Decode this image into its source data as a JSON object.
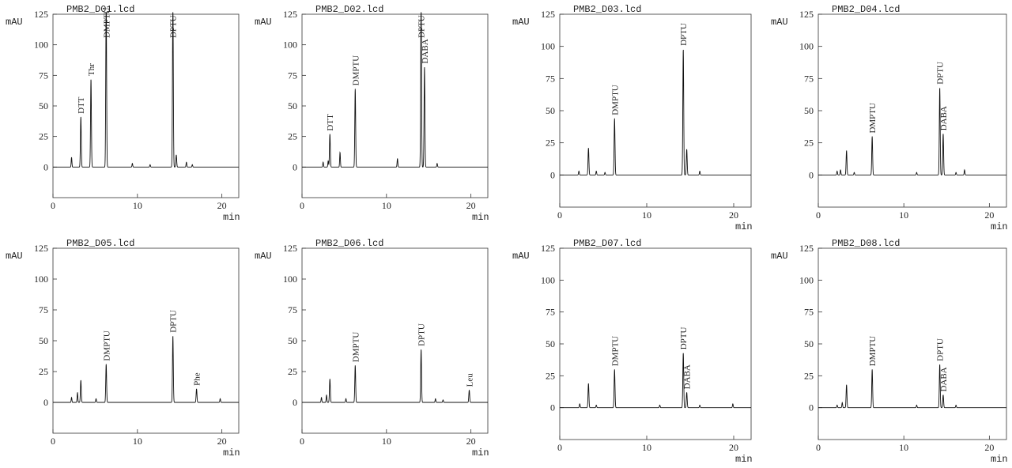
{
  "figure": {
    "y_unit": "mAU",
    "x_unit": "min"
  },
  "chart_data": [
    {
      "type": "line",
      "title": "PMB2_D01.lcd",
      "xlabel": "min",
      "ylabel": "mAU",
      "xlim": [
        0,
        22
      ],
      "ylim": [
        -25,
        125
      ],
      "x_ticks": [
        0,
        10,
        20
      ],
      "y_ticks": [
        0,
        25,
        50,
        75,
        100,
        125
      ],
      "grid": false,
      "baseline_bumps": [
        [
          2.2,
          8
        ],
        [
          9.4,
          3
        ],
        [
          11.5,
          2
        ],
        [
          15.8,
          4
        ],
        [
          16.5,
          2
        ]
      ],
      "peaks": [
        {
          "x": 3.3,
          "height": 41,
          "label": "DTT"
        },
        {
          "x": 4.5,
          "height": 72,
          "label": "Thr"
        },
        {
          "x": 6.3,
          "height": 135,
          "label": "DMPTU"
        },
        {
          "x": 14.2,
          "height": 135,
          "label": "DPTU"
        },
        {
          "x": 14.6,
          "height": 10,
          "label": ""
        }
      ]
    },
    {
      "type": "line",
      "title": "PMB2_D02.lcd",
      "xlabel": "min",
      "ylabel": "mAU",
      "xlim": [
        0,
        22
      ],
      "ylim": [
        -25,
        125
      ],
      "x_ticks": [
        0,
        10,
        20
      ],
      "y_ticks": [
        0,
        25,
        50,
        75,
        100,
        125
      ],
      "grid": false,
      "baseline_bumps": [
        [
          2.5,
          4
        ],
        [
          3.1,
          5
        ],
        [
          4.5,
          12
        ],
        [
          11.3,
          7
        ],
        [
          16.0,
          3
        ]
      ],
      "peaks": [
        {
          "x": 3.3,
          "height": 27,
          "label": "DTT"
        },
        {
          "x": 6.3,
          "height": 64,
          "label": "DMPTU"
        },
        {
          "x": 14.1,
          "height": 135,
          "label": "DPTU"
        },
        {
          "x": 14.5,
          "height": 82,
          "label": "DABA"
        }
      ]
    },
    {
      "type": "line",
      "title": "PMB2_D03.lcd",
      "xlabel": "min",
      "ylabel": "mAU",
      "xlim": [
        0,
        22
      ],
      "ylim": [
        -25,
        125
      ],
      "x_ticks": [
        0,
        10,
        20
      ],
      "y_ticks": [
        0,
        25,
        50,
        75,
        100,
        125
      ],
      "grid": false,
      "baseline_bumps": [
        [
          2.2,
          3
        ],
        [
          4.2,
          3
        ],
        [
          5.2,
          2
        ],
        [
          16.1,
          3
        ]
      ],
      "peaks": [
        {
          "x": 3.3,
          "height": 21,
          "label": ""
        },
        {
          "x": 6.3,
          "height": 44,
          "label": "DMPTU"
        },
        {
          "x": 14.2,
          "height": 98,
          "label": "DPTU"
        },
        {
          "x": 14.6,
          "height": 20,
          "label": ""
        }
      ]
    },
    {
      "type": "line",
      "title": "PMB2_D04.lcd",
      "xlabel": "min",
      "ylabel": "mAU",
      "xlim": [
        0,
        22
      ],
      "ylim": [
        -25,
        125
      ],
      "x_ticks": [
        0,
        10,
        20
      ],
      "y_ticks": [
        0,
        25,
        50,
        75,
        100,
        125
      ],
      "grid": false,
      "baseline_bumps": [
        [
          2.2,
          3
        ],
        [
          2.6,
          4
        ],
        [
          4.2,
          2
        ],
        [
          11.5,
          2
        ],
        [
          16.1,
          2
        ],
        [
          17.1,
          4
        ]
      ],
      "peaks": [
        {
          "x": 3.3,
          "height": 19,
          "label": ""
        },
        {
          "x": 6.3,
          "height": 30,
          "label": "DMPTU"
        },
        {
          "x": 14.2,
          "height": 68,
          "label": "DPTU"
        },
        {
          "x": 14.6,
          "height": 32,
          "label": "DABA"
        }
      ]
    },
    {
      "type": "line",
      "title": "PMB2_D05.lcd",
      "xlabel": "min",
      "ylabel": "mAU",
      "xlim": [
        0,
        22
      ],
      "ylim": [
        -25,
        125
      ],
      "x_ticks": [
        0,
        10,
        20
      ],
      "y_ticks": [
        0,
        25,
        50,
        75,
        100,
        125
      ],
      "grid": false,
      "baseline_bumps": [
        [
          2.2,
          4
        ],
        [
          2.9,
          8
        ],
        [
          5.1,
          3
        ],
        [
          19.8,
          3
        ]
      ],
      "peaks": [
        {
          "x": 3.3,
          "height": 18,
          "label": ""
        },
        {
          "x": 6.3,
          "height": 31,
          "label": "DMPTU"
        },
        {
          "x": 14.2,
          "height": 54,
          "label": "DPTU"
        },
        {
          "x": 17.0,
          "height": 11,
          "label": "Phe"
        }
      ]
    },
    {
      "type": "line",
      "title": "PMB2_D06.lcd",
      "xlabel": "min",
      "ylabel": "mAU",
      "xlim": [
        0,
        22
      ],
      "ylim": [
        -25,
        125
      ],
      "x_ticks": [
        0,
        10,
        20
      ],
      "y_ticks": [
        0,
        25,
        50,
        75,
        100,
        125
      ],
      "grid": false,
      "baseline_bumps": [
        [
          2.3,
          4
        ],
        [
          2.9,
          6
        ],
        [
          5.2,
          3
        ],
        [
          15.8,
          3
        ],
        [
          16.7,
          2
        ]
      ],
      "peaks": [
        {
          "x": 3.3,
          "height": 19,
          "label": ""
        },
        {
          "x": 6.3,
          "height": 30,
          "label": "DMPTU"
        },
        {
          "x": 14.1,
          "height": 43,
          "label": "DPTU"
        },
        {
          "x": 19.8,
          "height": 10,
          "label": "Leu"
        }
      ]
    },
    {
      "type": "line",
      "title": "PMB2_D07.lcd",
      "xlabel": "min",
      "ylabel": "mAU",
      "xlim": [
        0,
        22
      ],
      "ylim": [
        -25,
        125
      ],
      "x_ticks": [
        0,
        10,
        20
      ],
      "y_ticks": [
        0,
        25,
        50,
        75,
        100,
        125
      ],
      "grid": false,
      "baseline_bumps": [
        [
          2.3,
          3
        ],
        [
          4.2,
          2
        ],
        [
          11.5,
          2
        ],
        [
          16.1,
          2
        ],
        [
          19.9,
          3
        ]
      ],
      "peaks": [
        {
          "x": 3.3,
          "height": 19,
          "label": ""
        },
        {
          "x": 6.3,
          "height": 30,
          "label": "DMPTU"
        },
        {
          "x": 14.2,
          "height": 43,
          "label": "DPTU"
        },
        {
          "x": 14.6,
          "height": 12,
          "label": "DABA"
        }
      ]
    },
    {
      "type": "line",
      "title": "PMB2_D08.lcd",
      "xlabel": "min",
      "ylabel": "mAU",
      "xlim": [
        0,
        22
      ],
      "ylim": [
        -25,
        125
      ],
      "x_ticks": [
        0,
        10,
        20
      ],
      "y_ticks": [
        0,
        25,
        50,
        75,
        100,
        125
      ],
      "grid": false,
      "baseline_bumps": [
        [
          2.2,
          2
        ],
        [
          2.8,
          4
        ],
        [
          11.5,
          2
        ],
        [
          16.1,
          2
        ]
      ],
      "peaks": [
        {
          "x": 3.3,
          "height": 18,
          "label": ""
        },
        {
          "x": 6.3,
          "height": 30,
          "label": "DMPTU"
        },
        {
          "x": 14.2,
          "height": 34,
          "label": "DPTU"
        },
        {
          "x": 14.6,
          "height": 10,
          "label": "DABA"
        }
      ]
    }
  ]
}
